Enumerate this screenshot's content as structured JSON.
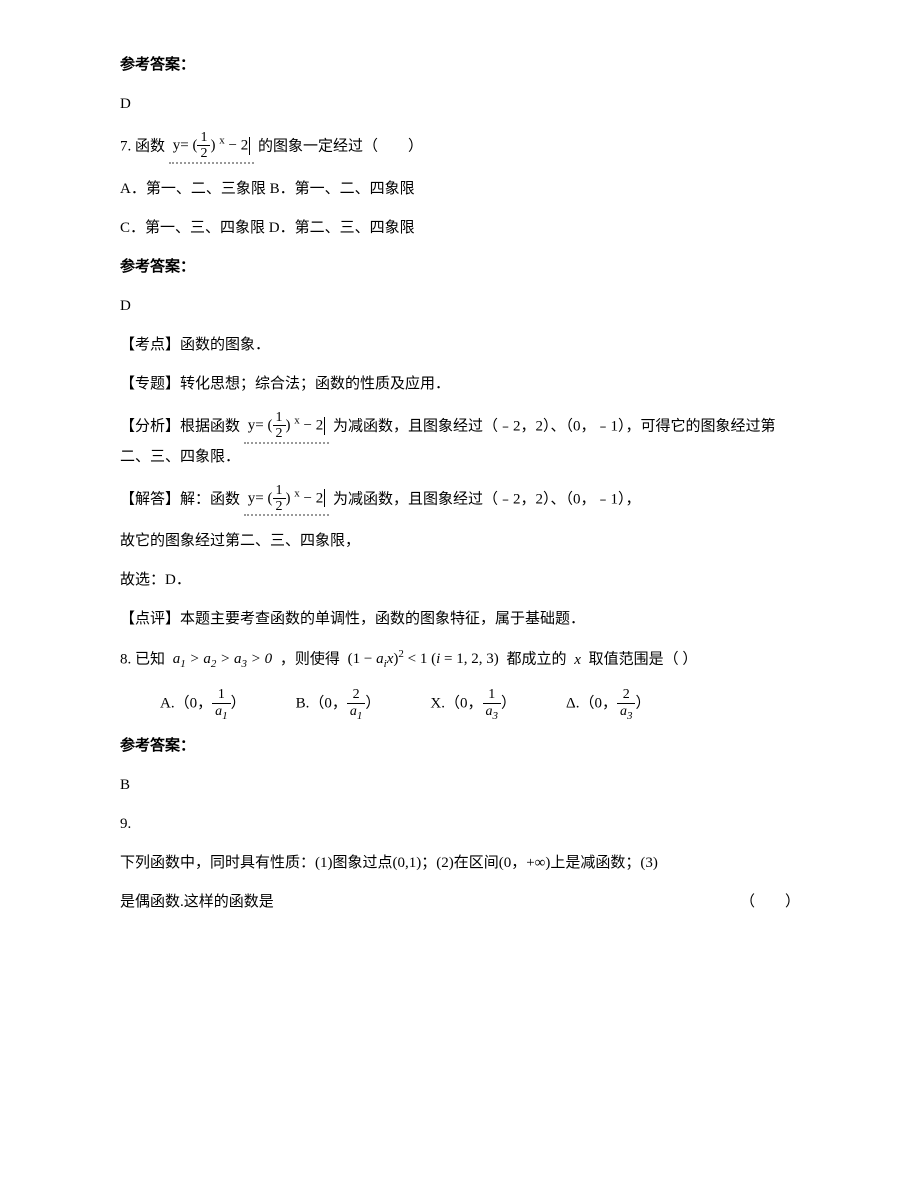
{
  "answer_label": "参考答案：",
  "q6": {
    "answer": "D"
  },
  "q7": {
    "prefix": "7. 函数",
    "formula_text": "y= ( ½ ) ˣ − 2",
    "suffix": "的图象一定经过（　　）",
    "opt_a": "A．第一、二、三象限 B．第一、二、四象限",
    "opt_c": "C．第一、三、四象限 D．第二、三、四象限",
    "answer": "D",
    "kaodian_label": "【考点】",
    "kaodian": "函数的图象．",
    "zhuanti_label": "【专题】",
    "zhuanti": "转化思想；综合法；函数的性质及应用．",
    "fenxi_label": "【分析】",
    "fenxi_pre": "根据函数",
    "fenxi_post": "为减函数，且图象经过（﹣2，2）、（0，﹣1），可得它的图象经过第二、三、四象限．",
    "jieda_label": "【解答】",
    "jieda_pre": "解：函数",
    "jieda_post": "为减函数，且图象经过（﹣2，2）、（0，﹣1），",
    "jieda_line2": "故它的图象经过第二、三、四象限，",
    "jieda_line3": "故选：D．",
    "dianping_label": "【点评】",
    "dianping": "本题主要考查函数的单调性，函数的图象特征，属于基础题．"
  },
  "q8": {
    "prefix": "8. 已知",
    "cond1_html": "a₁ > a₂ > a₃ > 0",
    "mid": " ，则使得",
    "cond2_pre": "(1 − a",
    "cond2_i": "i",
    "cond2_post_x": "x)",
    "cond2_exp": "2",
    "cond2_lt": " < 1 (i = 1, 2, 3)",
    "suffix": " 都成立的",
    "xvar": "x",
    "tail": " 取值范围是（  ）",
    "optA_label": "A.",
    "optB_label": "B.",
    "optX_label": "X.",
    "optD_label": "Δ.",
    "open": "（0，",
    "close": "）",
    "num1": "1",
    "num2": "2",
    "den_a1": "a",
    "den_a1_sub": "1",
    "den_a3": "a",
    "den_a3_sub": "3",
    "answer": "B"
  },
  "q9": {
    "num": "9.",
    "line1": "下列函数中，同时具有性质：(1)图象过点(0,1)；(2)在区间(0，+∞)上是减函数；(3)",
    "line2_left": "是偶函数.这样的函数是",
    "line2_right": "（　　）"
  },
  "frac_half": {
    "num": "1",
    "den": "2"
  }
}
